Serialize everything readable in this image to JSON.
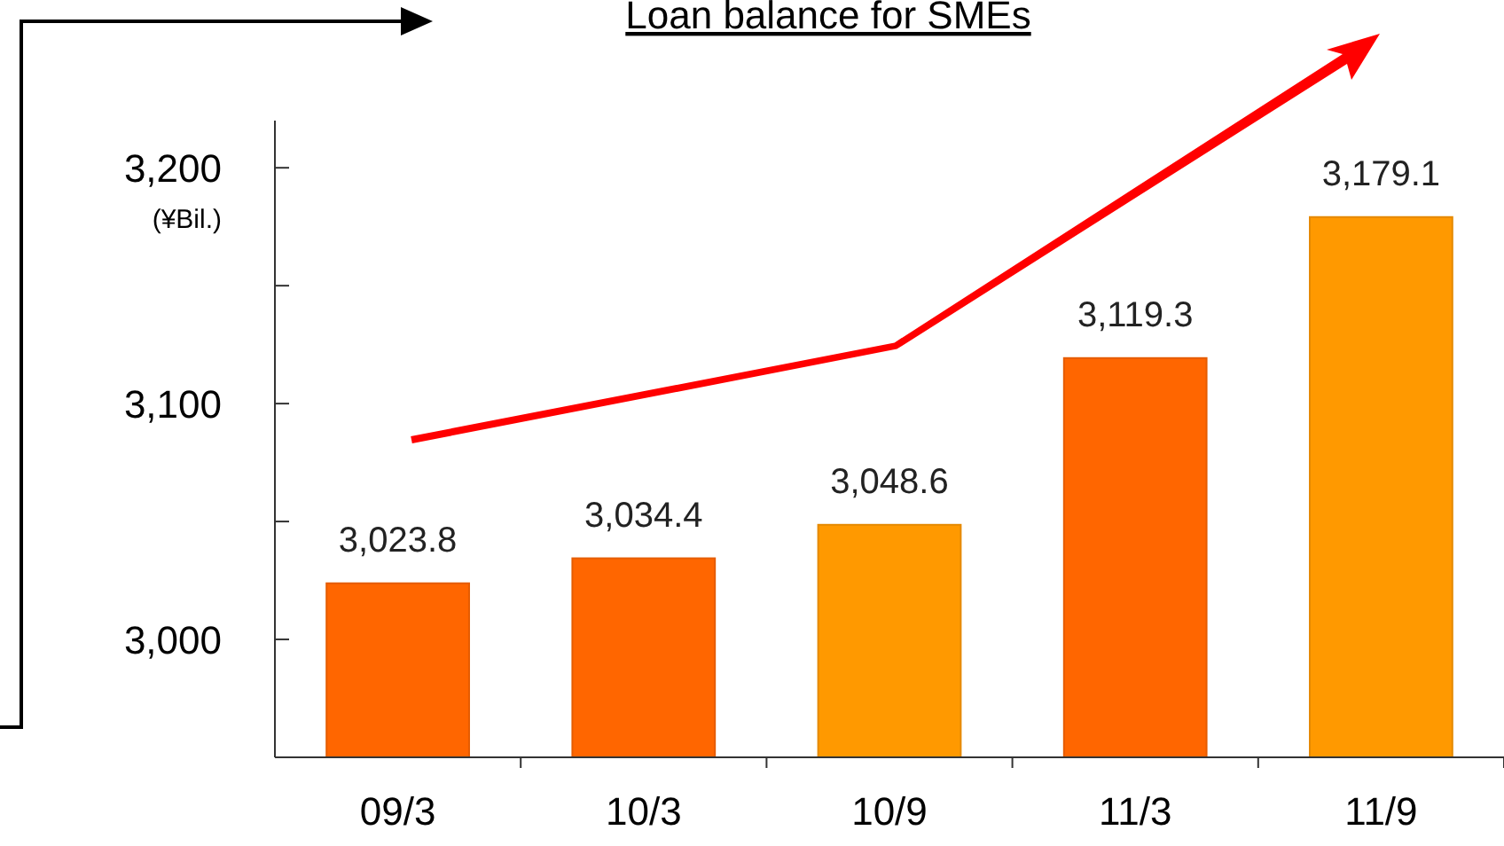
{
  "chart_data": {
    "type": "bar",
    "title": "Loan balance for SMEs",
    "ylabel": "(¥Bil.)",
    "categories": [
      "09/3",
      "10/3",
      "10/9",
      "11/3",
      "11/9"
    ],
    "values": [
      3023.8,
      3034.4,
      3048.6,
      3119.3,
      3179.1
    ],
    "value_labels": [
      "3,023.8",
      "3,034.4",
      "3,048.6",
      "3,119.3",
      "3,179.1"
    ],
    "colors": [
      "#ff6600",
      "#ff6600",
      "#ff9900",
      "#ff6600",
      "#ff9900"
    ],
    "ylim": [
      2950,
      3220
    ],
    "yticks": [
      {
        "value": 3000,
        "label": "3,000"
      },
      {
        "value": 3050,
        "label": null
      },
      {
        "value": 3100,
        "label": "3,100"
      },
      {
        "value": 3150,
        "label": null
      },
      {
        "value": 3200,
        "label": "3,200"
      }
    ],
    "grid": false
  }
}
